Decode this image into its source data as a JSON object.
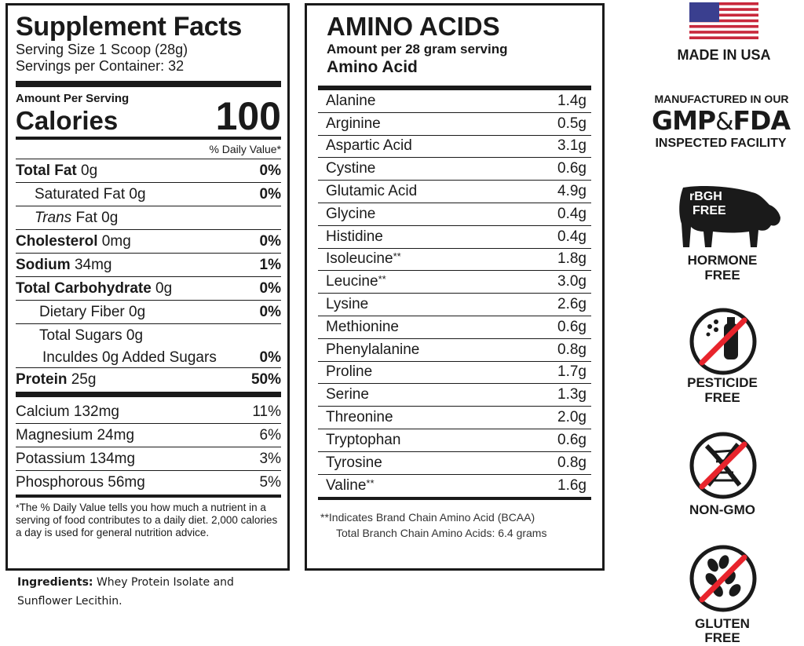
{
  "supplement_facts": {
    "title": "Supplement Facts",
    "serving_size": "Serving Size 1 Scoop (28g)",
    "servings_per_container": "Servings per Container: 32",
    "amount_per_serving": "Amount Per Serving",
    "calories_label": "Calories",
    "calories_value": "100",
    "dv_header": "% Daily Value*",
    "nutrients": [
      {
        "name": "Total Fat",
        "amount": " 0g",
        "dv": "0%"
      },
      {
        "name": "Saturated Fat 0g",
        "dv": "0%"
      },
      {
        "name": "Trans",
        "amount": " Fat 0g",
        "dv": ""
      },
      {
        "name": "Cholesterol",
        "amount": " 0mg",
        "dv": "0%"
      },
      {
        "name": "Sodium",
        "amount": " 34mg",
        "dv": "1%"
      },
      {
        "name": "Total Carbohydrate",
        "amount": " 0g",
        "dv": "0%"
      },
      {
        "name": "Dietary Fiber 0g",
        "dv": "0%"
      },
      {
        "name": "Total Sugars 0g",
        "dv": ""
      },
      {
        "name": "Inculdes 0g Added Sugars",
        "dv": "0%"
      },
      {
        "name": "Protein",
        "amount": " 25g",
        "dv": "50%"
      }
    ],
    "minerals": [
      {
        "name": "Calcium 132mg",
        "dv": "11%"
      },
      {
        "name": "Magnesium 24mg",
        "dv": "6%"
      },
      {
        "name": "Potassium 134mg",
        "dv": "3%"
      },
      {
        "name": "Phosphorous 56mg",
        "dv": "5%"
      }
    ],
    "footnote_star": "*",
    "footnote": "The % Daily Value tells you how much a nutrient in a serving of food contributes to a daily diet. 2,000 calories a day is used for general nutrition advice."
  },
  "ingredients": {
    "label": "Ingredients:",
    "text": " Whey Protein Isolate and Sunflower Lecithin."
  },
  "amino_acids": {
    "title": "AMINO ACIDS",
    "subtitle": "Amount per 28 gram serving",
    "column_header": "Amino Acid",
    "rows": [
      {
        "name": "Alanine",
        "amount": "1.4g",
        "bcaa": ""
      },
      {
        "name": "Arginine",
        "amount": "0.5g",
        "bcaa": ""
      },
      {
        "name": "Aspartic Acid",
        "amount": "3.1g",
        "bcaa": ""
      },
      {
        "name": "Cystine",
        "amount": "0.6g",
        "bcaa": ""
      },
      {
        "name": "Glutamic Acid",
        "amount": "4.9g",
        "bcaa": ""
      },
      {
        "name": "Glycine",
        "amount": "0.4g",
        "bcaa": ""
      },
      {
        "name": "Histidine",
        "amount": "0.4g",
        "bcaa": ""
      },
      {
        "name": "Isoleucine",
        "amount": "1.8g",
        "bcaa": "**"
      },
      {
        "name": "Leucine",
        "amount": "3.0g",
        "bcaa": "**"
      },
      {
        "name": "Lysine",
        "amount": "2.6g",
        "bcaa": ""
      },
      {
        "name": "Methionine",
        "amount": "0.6g",
        "bcaa": ""
      },
      {
        "name": "Phenylalanine",
        "amount": "0.8g",
        "bcaa": ""
      },
      {
        "name": "Proline",
        "amount": "1.7g",
        "bcaa": ""
      },
      {
        "name": "Serine",
        "amount": "1.3g",
        "bcaa": ""
      },
      {
        "name": "Threonine",
        "amount": "2.0g",
        "bcaa": ""
      },
      {
        "name": "Tryptophan",
        "amount": "0.6g",
        "bcaa": ""
      },
      {
        "name": "Tyrosine",
        "amount": "0.8g",
        "bcaa": ""
      },
      {
        "name": "Valine",
        "amount": "1.6g",
        "bcaa": "**"
      }
    ],
    "note_line1": "**Indicates Brand Chain Amino Acid (BCAA)",
    "note_line2": "Total Branch Chain Amino Acids: 6.4 grams"
  },
  "badges": {
    "made_in": "MADE IN USA",
    "mfg_top": "MANUFACTURED IN OUR",
    "gmp": "GMP",
    "amp": "&",
    "fda": "FDA",
    "mfg_bottom": "INSPECTED FACILITY",
    "cow_text_1": "rBGH",
    "cow_text_2": "FREE",
    "hormone_1": "HORMONE",
    "hormone_2": "FREE",
    "pesticide_1": "PESTICIDE",
    "pesticide_2": "FREE",
    "nongmo": "NON-GMO",
    "gluten_1": "GLUTEN",
    "gluten_2": "FREE",
    "accent_color": "#e8242c",
    "flag_red": "#c8283c",
    "flag_blue": "#3a3f8f"
  }
}
